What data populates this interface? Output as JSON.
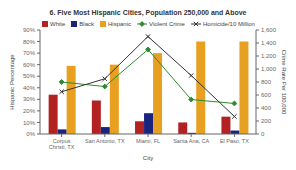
{
  "chart_data": {
    "type": "bar",
    "title": "6. Five Most Hispanic Cities, Population 250,000 and Above",
    "x_label": "City",
    "y_label": "Hispanic Percentage",
    "y2_label": "Crime Rate Per 100,000",
    "categories": [
      "Corpus\nChristi, TX",
      "San Antonio, TX",
      "Miami, FL",
      "Santa Ana, CA",
      "El Paso, TX"
    ],
    "series": [
      {
        "name": "White",
        "color": "#B22222",
        "values": [
          34,
          29,
          11,
          10,
          15
        ]
      },
      {
        "name": "Black",
        "color": "#1A237E",
        "values": [
          4,
          6,
          18,
          1,
          3
        ]
      },
      {
        "name": "Hispanic",
        "color": "#E8A020",
        "values": [
          59,
          60,
          70,
          80,
          80
        ]
      },
      {
        "name": "Violent Crime",
        "type": "line",
        "axis": "y2",
        "color": "#2E8B2E",
        "marker": "diamond",
        "values": [
          800,
          730,
          1300,
          530,
          470
        ]
      },
      {
        "name": "Homicide/10 Million",
        "type": "line",
        "axis": "y2",
        "color": "#333333",
        "marker": "x",
        "values": [
          650,
          850,
          1500,
          900,
          270
        ]
      }
    ],
    "ylim": [
      0,
      90
    ],
    "yticks": [
      {
        "value": 0,
        "label": "0%"
      },
      {
        "value": 10,
        "label": "10%"
      },
      {
        "value": 20,
        "label": "20%"
      },
      {
        "value": 30,
        "label": "30%"
      },
      {
        "value": 40,
        "label": "40%"
      },
      {
        "value": 50,
        "label": "50%"
      },
      {
        "value": 60,
        "label": "60%"
      },
      {
        "value": 70,
        "label": "70%"
      },
      {
        "value": 80,
        "label": "80%"
      },
      {
        "value": 90,
        "label": "90%"
      }
    ],
    "y2lim": [
      0,
      1600
    ],
    "y2ticks": [
      0,
      200,
      400,
      600,
      800,
      {
        "value": 1000,
        "label": "1,000"
      },
      {
        "value": 1200,
        "label": "1,200"
      },
      {
        "value": 1400,
        "label": "1,400"
      },
      {
        "value": 1600,
        "label": "1,600"
      }
    ],
    "legend": "upper left",
    "grid": false
  }
}
